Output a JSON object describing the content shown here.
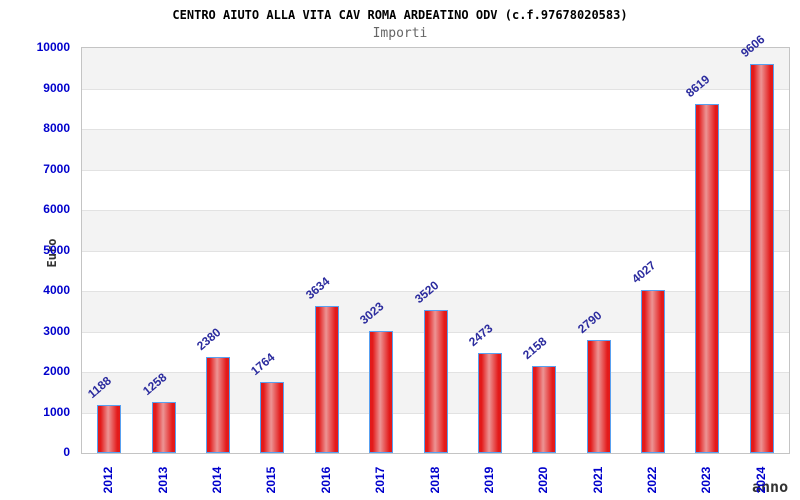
{
  "chart_data": {
    "type": "bar",
    "title": "CENTRO AIUTO ALLA VITA CAV ROMA ARDEATINO ODV (c.f.97678020583)",
    "subtitle": "Importi",
    "xlabel": "anno",
    "ylabel": "Euro",
    "categories": [
      "2012",
      "2013",
      "2014",
      "2015",
      "2016",
      "2017",
      "2018",
      "2019",
      "2020",
      "2021",
      "2022",
      "2023",
      "2024"
    ],
    "values": [
      1188,
      1258,
      2380,
      1764,
      3634,
      3023,
      3520,
      2473,
      2158,
      2790,
      4027,
      8619,
      9606
    ],
    "ylim": [
      0,
      10000
    ],
    "ytick_step": 1000,
    "yticks": [
      "0",
      "1000",
      "2000",
      "3000",
      "4000",
      "5000",
      "6000",
      "7000",
      "8000",
      "9000",
      "10000"
    ],
    "grid": true,
    "legend": "none",
    "colors": {
      "bar_main": "#e31a1a",
      "bar_light": "#ec9494",
      "bar_edge": "#58a0f0",
      "tick_label": "#0000cc",
      "value_label": "#2b2b9e",
      "band_gray": "#f3f3f3",
      "gridline": "#e2e2e2",
      "axis_title": "#333333",
      "title": "#000000",
      "subtitle": "#666666",
      "background": "#ffffff"
    }
  }
}
